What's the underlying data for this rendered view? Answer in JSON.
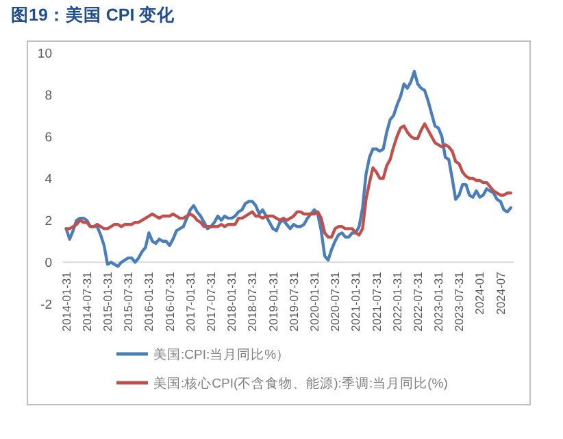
{
  "chart_data": {
    "type": "line",
    "title": "图19：美国 CPI 变化",
    "x": [
      "2014-01",
      "2014-02",
      "2014-03",
      "2014-04",
      "2014-05",
      "2014-06",
      "2014-07",
      "2014-08",
      "2014-09",
      "2014-10",
      "2014-11",
      "2014-12",
      "2015-01",
      "2015-02",
      "2015-03",
      "2015-04",
      "2015-05",
      "2015-06",
      "2015-07",
      "2015-08",
      "2015-09",
      "2015-10",
      "2015-11",
      "2015-12",
      "2016-01",
      "2016-02",
      "2016-03",
      "2016-04",
      "2016-05",
      "2016-06",
      "2016-07",
      "2016-08",
      "2016-09",
      "2016-10",
      "2016-11",
      "2016-12",
      "2017-01",
      "2017-02",
      "2017-03",
      "2017-04",
      "2017-05",
      "2017-06",
      "2017-07",
      "2017-08",
      "2017-09",
      "2017-10",
      "2017-11",
      "2017-12",
      "2018-01",
      "2018-02",
      "2018-03",
      "2018-04",
      "2018-05",
      "2018-06",
      "2018-07",
      "2018-08",
      "2018-09",
      "2018-10",
      "2018-11",
      "2018-12",
      "2019-01",
      "2019-02",
      "2019-03",
      "2019-04",
      "2019-05",
      "2019-06",
      "2019-07",
      "2019-08",
      "2019-09",
      "2019-10",
      "2019-11",
      "2019-12",
      "2020-01",
      "2020-02",
      "2020-03",
      "2020-04",
      "2020-05",
      "2020-06",
      "2020-07",
      "2020-08",
      "2020-09",
      "2020-10",
      "2020-11",
      "2020-12",
      "2021-01",
      "2021-02",
      "2021-03",
      "2021-04",
      "2021-05",
      "2021-06",
      "2021-07",
      "2021-08",
      "2021-09",
      "2021-10",
      "2021-11",
      "2021-12",
      "2022-01",
      "2022-02",
      "2022-03",
      "2022-04",
      "2022-05",
      "2022-06",
      "2022-07",
      "2022-08",
      "2022-09",
      "2022-10",
      "2022-11",
      "2022-12",
      "2023-01",
      "2023-02",
      "2023-03",
      "2023-04",
      "2023-05",
      "2023-06",
      "2023-07",
      "2023-08",
      "2023-09",
      "2023-10",
      "2023-11",
      "2023-12",
      "2024-01",
      "2024-02",
      "2024-03",
      "2024-04",
      "2024-05",
      "2024-06",
      "2024-07",
      "2024-08",
      "2024-09",
      "2024-10"
    ],
    "series": [
      {
        "name": "美国:CPI:当月同比%）",
        "color": "#4a7ebb",
        "values": [
          1.6,
          1.1,
          1.5,
          2.0,
          2.1,
          2.1,
          2.0,
          1.7,
          1.7,
          1.7,
          1.3,
          0.8,
          -0.1,
          0.0,
          -0.1,
          -0.2,
          0.0,
          0.1,
          0.2,
          0.2,
          0.0,
          0.2,
          0.5,
          0.7,
          1.4,
          1.0,
          0.9,
          1.1,
          1.0,
          1.0,
          0.8,
          1.1,
          1.5,
          1.6,
          1.7,
          2.1,
          2.5,
          2.7,
          2.4,
          2.2,
          1.9,
          1.6,
          1.7,
          1.9,
          2.2,
          2.0,
          2.2,
          2.1,
          2.1,
          2.2,
          2.4,
          2.5,
          2.8,
          2.9,
          2.9,
          2.7,
          2.3,
          2.5,
          2.2,
          1.9,
          1.6,
          1.5,
          1.9,
          2.0,
          1.8,
          1.6,
          1.8,
          1.7,
          1.7,
          1.8,
          2.1,
          2.3,
          2.5,
          2.3,
          1.5,
          0.3,
          0.1,
          0.6,
          1.0,
          1.3,
          1.4,
          1.2,
          1.2,
          1.4,
          1.4,
          1.7,
          2.6,
          4.2,
          5.0,
          5.4,
          5.4,
          5.3,
          5.4,
          6.2,
          6.8,
          7.0,
          7.5,
          7.9,
          8.5,
          8.3,
          8.6,
          9.1,
          8.5,
          8.3,
          8.2,
          7.7,
          7.1,
          6.5,
          6.4,
          6.0,
          5.0,
          4.9,
          4.0,
          3.0,
          3.2,
          3.7,
          3.7,
          3.2,
          3.1,
          3.4,
          3.1,
          3.2,
          3.5,
          3.4,
          3.3,
          3.0,
          2.9,
          2.5,
          2.4,
          2.6
        ]
      },
      {
        "name": "美国:核心CPI(不含食物、能源):季调:当月同比(%)",
        "color": "#c0504d",
        "values": [
          1.6,
          1.6,
          1.7,
          1.8,
          2.0,
          1.9,
          1.9,
          1.7,
          1.7,
          1.8,
          1.7,
          1.6,
          1.6,
          1.7,
          1.8,
          1.8,
          1.7,
          1.8,
          1.8,
          1.8,
          1.9,
          1.9,
          2.0,
          2.1,
          2.2,
          2.3,
          2.2,
          2.1,
          2.2,
          2.2,
          2.2,
          2.3,
          2.2,
          2.1,
          2.1,
          2.2,
          2.3,
          2.2,
          2.0,
          1.9,
          1.7,
          1.7,
          1.7,
          1.7,
          1.7,
          1.8,
          1.7,
          1.8,
          1.8,
          1.8,
          2.1,
          2.1,
          2.2,
          2.3,
          2.4,
          2.2,
          2.2,
          2.1,
          2.2,
          2.2,
          2.2,
          2.1,
          2.0,
          2.1,
          2.0,
          2.1,
          2.2,
          2.4,
          2.4,
          2.3,
          2.3,
          2.3,
          2.3,
          2.4,
          2.1,
          1.4,
          1.2,
          1.2,
          1.6,
          1.7,
          1.7,
          1.6,
          1.6,
          1.6,
          1.4,
          1.3,
          1.6,
          3.0,
          3.8,
          4.5,
          4.3,
          4.0,
          4.0,
          4.6,
          4.9,
          5.5,
          6.0,
          6.4,
          6.5,
          6.2,
          6.0,
          5.9,
          5.9,
          6.3,
          6.6,
          6.3,
          6.0,
          5.7,
          5.6,
          5.5,
          5.6,
          5.5,
          5.3,
          4.8,
          4.7,
          4.3,
          4.1,
          4.0,
          4.0,
          3.9,
          3.9,
          3.8,
          3.8,
          3.6,
          3.4,
          3.3,
          3.2,
          3.2,
          3.3,
          3.3
        ]
      }
    ],
    "xlim": [
      "2013-12",
      "2024-11"
    ],
    "xticks": [
      {
        "value": "2014-01",
        "label": "2014-01-31"
      },
      {
        "value": "2014-07",
        "label": "2014-07-31"
      },
      {
        "value": "2015-01",
        "label": "2015-01-31"
      },
      {
        "value": "2015-07",
        "label": "2015-07-31"
      },
      {
        "value": "2016-01",
        "label": "2016-01-31"
      },
      {
        "value": "2016-07",
        "label": "2016-07-31"
      },
      {
        "value": "2017-01",
        "label": "2017-01-31"
      },
      {
        "value": "2017-07",
        "label": "2017-07-31"
      },
      {
        "value": "2018-01",
        "label": "2018-01-31"
      },
      {
        "value": "2018-07",
        "label": "2018-07-31"
      },
      {
        "value": "2019-01",
        "label": "2019-01-31"
      },
      {
        "value": "2019-07",
        "label": "2019-07-31"
      },
      {
        "value": "2020-01",
        "label": "2020-01-31"
      },
      {
        "value": "2020-07",
        "label": "2020-07-31"
      },
      {
        "value": "2021-01",
        "label": "2021-01-31"
      },
      {
        "value": "2021-07",
        "label": "2021-07-31"
      },
      {
        "value": "2022-01",
        "label": "2022-01-31"
      },
      {
        "value": "2022-07",
        "label": "2022-07-31"
      },
      {
        "value": "2023-01",
        "label": "2023-01-31"
      },
      {
        "value": "2023-07",
        "label": "2023-07-31"
      },
      {
        "value": "2024-01",
        "label": "2024-01"
      },
      {
        "value": "2024-07",
        "label": "2024-07"
      }
    ],
    "ylim": [
      -2,
      10
    ],
    "yticks": [
      -2,
      0,
      2,
      4,
      6,
      8,
      10
    ],
    "legend": "bottom"
  }
}
